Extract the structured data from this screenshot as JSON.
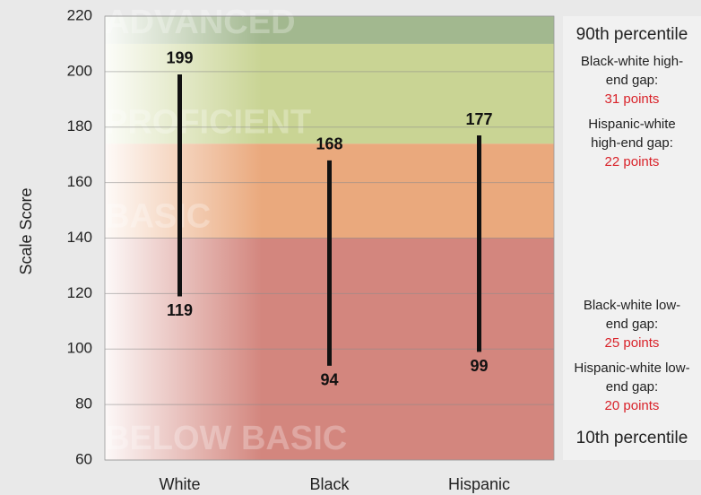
{
  "chart_data": {
    "type": "range",
    "y_label": "Scale Score",
    "categories": [
      "White",
      "Black",
      "Hispanic"
    ],
    "high": [
      199,
      168,
      177
    ],
    "low": [
      119,
      94,
      99
    ],
    "ylim": [
      60,
      220
    ],
    "yticks": [
      60,
      80,
      100,
      120,
      140,
      160,
      180,
      200,
      220
    ],
    "grid": true,
    "bands": [
      {
        "label": "ADVANCED",
        "from": 210,
        "to": 220,
        "color": "#a2b88f"
      },
      {
        "label": "PROFICIENT",
        "from": 174,
        "to": 210,
        "color": "#c9d494"
      },
      {
        "label": "BASIC",
        "from": 140,
        "to": 174,
        "color": "#eaa97d"
      },
      {
        "label": "BELOW BASIC",
        "from": 60,
        "to": 140,
        "color": "#d3867e"
      }
    ],
    "high_title": "90th percentile",
    "high_gaps": [
      {
        "label": "Black-white high-end gap:",
        "gap": "31 points"
      },
      {
        "label": "Hispanic-white high-end gap:",
        "gap": "22 points"
      }
    ],
    "low_gaps": [
      {
        "label": "Black-white low-end gap:",
        "gap": "25 points"
      },
      {
        "label": "Hispanic-white low-end gap:",
        "gap": "20 points"
      }
    ],
    "low_title": "10th percentile"
  }
}
